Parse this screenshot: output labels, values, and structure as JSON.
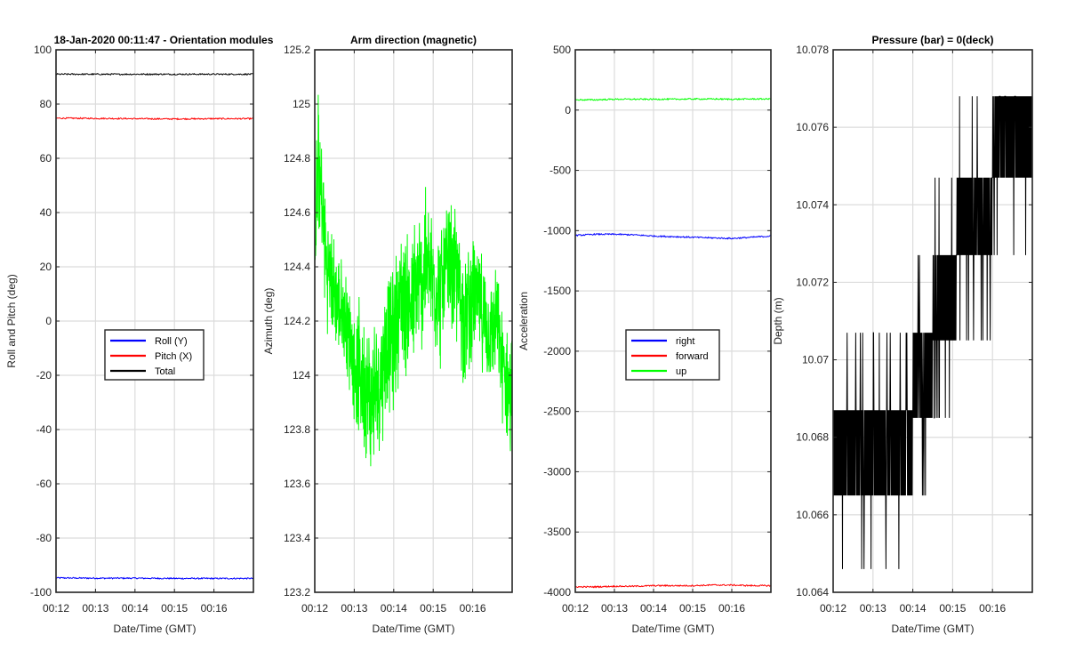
{
  "figure_title_prefix": "18-Jan-2020 00:11:47",
  "chart_data": [
    {
      "type": "line",
      "title": "18-Jan-2020 00:11:47 - Orientation modules",
      "xlabel": "Date/Time (GMT)",
      "ylabel": "Roll and Pitch (deg)",
      "xlim": [
        12.0,
        17.0
      ],
      "ylim": [
        -100,
        100
      ],
      "xticks": [
        12,
        13,
        14,
        15,
        16
      ],
      "xtick_labels": [
        "00:12",
        "00:13",
        "00:14",
        "00:15",
        "00:16"
      ],
      "yticks": [
        -100,
        -80,
        -60,
        -40,
        -20,
        0,
        20,
        40,
        60,
        80,
        100
      ],
      "ytick_labels": [
        "-100",
        "-80",
        "-60",
        "-40",
        "-20",
        "0",
        "20",
        "40",
        "60",
        "80",
        "100"
      ],
      "grid": true,
      "legend": {
        "placement": "center",
        "entries": [
          "Roll (Y)",
          "Pitch (X)",
          "Total"
        ]
      },
      "series": [
        {
          "name": "Roll (Y)",
          "color": "#0000ff",
          "x": [
            12.0,
            13.0,
            14.0,
            15.0,
            16.0,
            17.0
          ],
          "values": [
            -94.7,
            -94.8,
            -94.8,
            -94.9,
            -94.9,
            -94.9
          ]
        },
        {
          "name": "Pitch (X)",
          "color": "#ff0000",
          "x": [
            12.0,
            13.0,
            14.0,
            15.0,
            16.0,
            17.0
          ],
          "values": [
            74.8,
            74.7,
            74.6,
            74.5,
            74.6,
            74.6
          ]
        },
        {
          "name": "Total",
          "color": "#000000",
          "x": [
            12.0,
            13.0,
            14.0,
            15.0,
            16.0,
            17.0
          ],
          "values": [
            91.0,
            91.0,
            91.0,
            91.0,
            91.0,
            91.0
          ]
        }
      ]
    },
    {
      "type": "line",
      "title": "Arm direction (magnetic)",
      "xlabel": "Date/Time (GMT)",
      "ylabel": "Azimuth (deg)",
      "xlim": [
        12.0,
        17.0
      ],
      "ylim": [
        123.2,
        125.2
      ],
      "xticks": [
        12,
        13,
        14,
        15,
        16
      ],
      "xtick_labels": [
        "00:12",
        "00:13",
        "00:14",
        "00:15",
        "00:16"
      ],
      "yticks": [
        123.2,
        123.4,
        123.6,
        123.8,
        124,
        124.2,
        124.4,
        124.6,
        124.8,
        125,
        125.2
      ],
      "ytick_labels": [
        "123.2",
        "123.4",
        "123.6",
        "123.8",
        "124",
        "124.2",
        "124.4",
        "124.6",
        "124.8",
        "125",
        "125.2"
      ],
      "grid": true,
      "series": [
        {
          "name": "Azimuth",
          "color": "#00ff00",
          "x": [
            12.0,
            12.1,
            12.2,
            12.3,
            12.4,
            12.6,
            12.8,
            13.0,
            13.2,
            13.4,
            13.6,
            13.8,
            14.0,
            14.2,
            14.4,
            14.6,
            14.8,
            15.0,
            15.2,
            15.4,
            15.6,
            15.8,
            16.0,
            16.2,
            16.4,
            16.6,
            16.8,
            17.0
          ],
          "values": [
            124.55,
            124.75,
            124.6,
            124.4,
            124.35,
            124.25,
            124.2,
            124.05,
            124.0,
            123.9,
            123.95,
            124.1,
            124.15,
            124.3,
            124.25,
            124.3,
            124.4,
            124.35,
            124.3,
            124.4,
            124.35,
            124.2,
            124.3,
            124.25,
            124.15,
            124.2,
            124.0,
            123.9
          ],
          "band": [
            0.22,
            0.35,
            0.28,
            0.25,
            0.24,
            0.22,
            0.22,
            0.24,
            0.3,
            0.32,
            0.3,
            0.3,
            0.3,
            0.3,
            0.32,
            0.33,
            0.32,
            0.3,
            0.3,
            0.28,
            0.3,
            0.28,
            0.26,
            0.24,
            0.22,
            0.22,
            0.24,
            0.28
          ]
        }
      ]
    },
    {
      "type": "line",
      "title": "",
      "xlabel": "Date/Time (GMT)",
      "ylabel": "Acceleration",
      "xlim": [
        12.0,
        17.0
      ],
      "ylim": [
        -4000,
        500
      ],
      "xticks": [
        12,
        13,
        14,
        15,
        16
      ],
      "xtick_labels": [
        "00:12",
        "00:13",
        "00:14",
        "00:15",
        "00:16"
      ],
      "yticks": [
        -4000,
        -3500,
        -3000,
        -2500,
        -2000,
        -1500,
        -1000,
        -500,
        0,
        500
      ],
      "ytick_labels": [
        "-4000",
        "-3500",
        "-3000",
        "-2500",
        "-2000",
        "-1500",
        "-1000",
        "-500",
        "0",
        "500"
      ],
      "grid": true,
      "legend": {
        "placement": "center",
        "entries": [
          "right",
          "forward",
          "up"
        ]
      },
      "series": [
        {
          "name": "right",
          "color": "#0000ff",
          "x": [
            12.0,
            12.5,
            13.0,
            13.5,
            14.0,
            14.5,
            15.0,
            15.5,
            16.0,
            16.5,
            17.0
          ],
          "values": [
            -1040,
            -1030,
            -1030,
            -1035,
            -1045,
            -1050,
            -1055,
            -1060,
            -1065,
            -1055,
            -1045
          ]
        },
        {
          "name": "forward",
          "color": "#ff0000",
          "x": [
            12.0,
            12.5,
            13.0,
            13.5,
            14.0,
            14.5,
            15.0,
            15.5,
            16.0,
            16.5,
            17.0
          ],
          "values": [
            -3955,
            -3955,
            -3950,
            -3950,
            -3945,
            -3945,
            -3945,
            -3940,
            -3940,
            -3945,
            -3945
          ]
        },
        {
          "name": "up",
          "color": "#00ff00",
          "x": [
            12.0,
            12.5,
            13.0,
            13.5,
            14.0,
            14.5,
            15.0,
            15.5,
            16.0,
            16.5,
            17.0
          ],
          "values": [
            85,
            85,
            90,
            90,
            90,
            90,
            92,
            92,
            90,
            92,
            92
          ]
        }
      ]
    },
    {
      "type": "line",
      "title": "Pressure (bar) = 0(deck)",
      "xlabel": "Date/Time (GMT)",
      "ylabel": "Depth (m)",
      "xlim": [
        12.0,
        17.0
      ],
      "ylim": [
        10.064,
        10.078
      ],
      "xticks": [
        12,
        13,
        14,
        15,
        16
      ],
      "xtick_labels": [
        "00:12",
        "00:13",
        "00:14",
        "00:15",
        "00:16"
      ],
      "yticks": [
        10.064,
        10.066,
        10.068,
        10.07,
        10.072,
        10.074,
        10.076,
        10.078
      ],
      "ytick_labels": [
        "10.064",
        "10.066",
        "10.068",
        "10.07",
        "10.072",
        "10.074",
        "10.076",
        "10.078"
      ],
      "grid": true,
      "series": [
        {
          "name": "Depth",
          "color": "#000000",
          "steps": [
            {
              "x0": 12.0,
              "x1": 14.0,
              "low": 10.0665,
              "high": 10.0687,
              "spike_high": 10.0707,
              "spike_low": 10.0646
            },
            {
              "x0": 14.0,
              "x1": 14.5,
              "low": 10.0685,
              "high": 10.0707,
              "spike_high": 10.0727,
              "spike_low": 10.0665
            },
            {
              "x0": 14.5,
              "x1": 15.1,
              "low": 10.0705,
              "high": 10.0727,
              "spike_high": 10.0747,
              "spike_low": 10.0685
            },
            {
              "x0": 15.1,
              "x1": 16.0,
              "low": 10.0727,
              "high": 10.0747,
              "spike_high": 10.0768,
              "spike_low": 10.0705
            },
            {
              "x0": 16.0,
              "x1": 17.0,
              "low": 10.0747,
              "high": 10.0768,
              "spike_high": 10.0768,
              "spike_low": 10.0727
            }
          ]
        }
      ]
    }
  ]
}
